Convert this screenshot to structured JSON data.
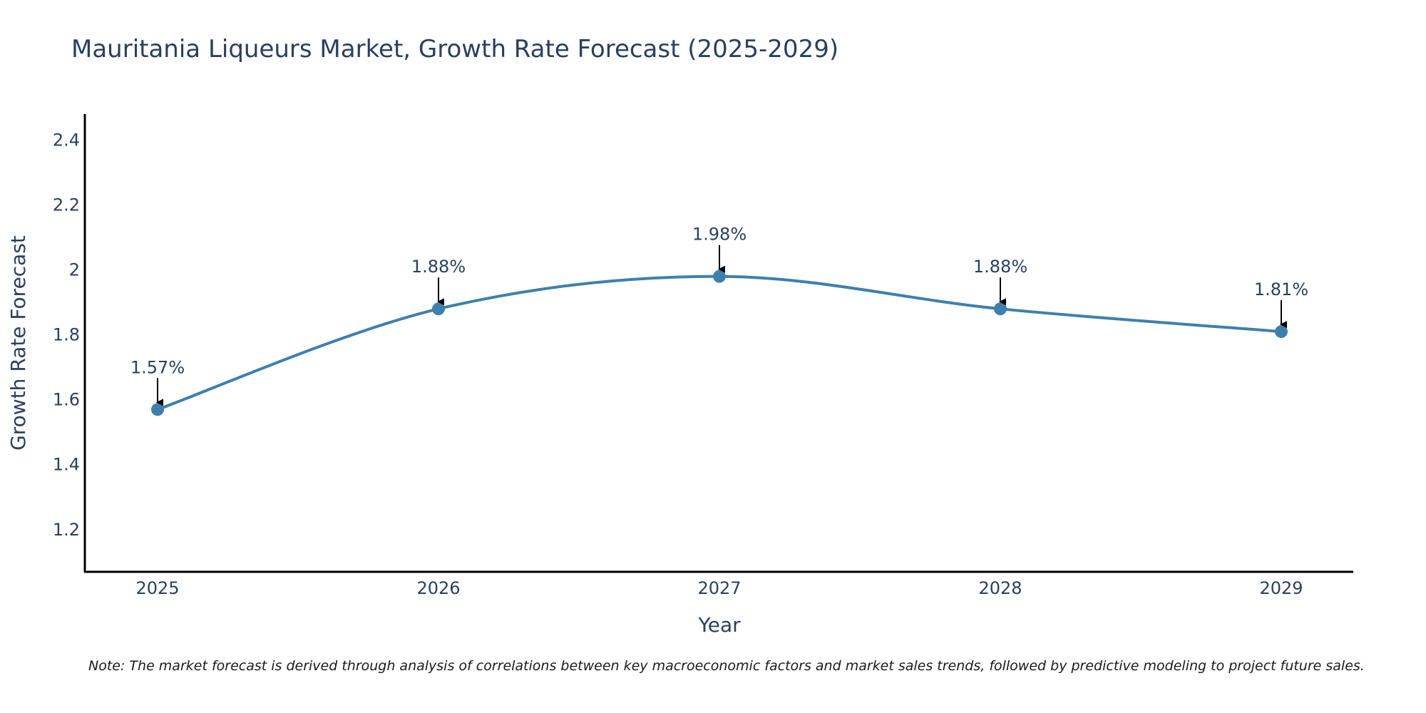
{
  "chart_data": {
    "type": "line",
    "title": "Mauritania Liqueurs Market, Growth Rate Forecast (2025-2029)",
    "xlabel": "Year",
    "ylabel": "Growth Rate Forecast",
    "categories": [
      "2025",
      "2026",
      "2027",
      "2028",
      "2029"
    ],
    "values": [
      1.57,
      1.88,
      1.98,
      1.88,
      1.81
    ],
    "data_labels": [
      "1.57%",
      "1.88%",
      "1.98%",
      "1.88%",
      "1.81%"
    ],
    "ylim": [
      1.07,
      2.48
    ],
    "y_ticks": [
      1.2,
      1.4,
      1.6,
      1.8,
      2,
      2.2,
      2.4
    ],
    "y_tick_labels": [
      "1.2",
      "1.4",
      "1.6",
      "1.8",
      "2",
      "2.2",
      "2.4"
    ],
    "line_shape": "spline",
    "grid": false,
    "series_color": "#3f7fad",
    "axis_color": "#000000",
    "text_color": "#2a3f5f"
  },
  "note": "Note: The market forecast is derived through analysis of correlations between key macroeconomic factors and market sales trends, followed by predictive modeling to project future sales."
}
